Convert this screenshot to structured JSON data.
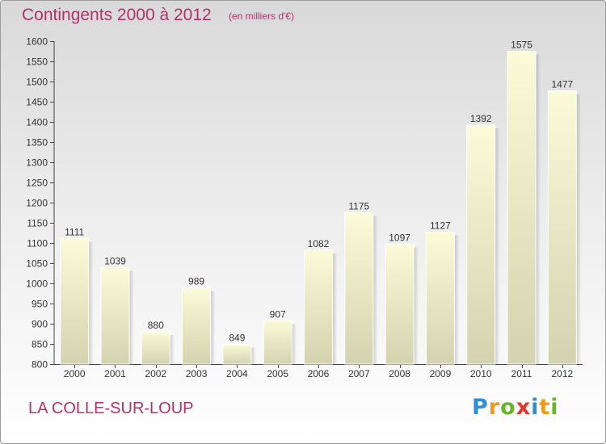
{
  "header": {
    "title": "Contingents 2000 à 2012",
    "unit": "(en milliers d'€)"
  },
  "footer": {
    "commune": "LA COLLE-SUR-LOUP",
    "brand_letters": [
      "P",
      "r",
      "o",
      "x",
      "i",
      "t",
      "i"
    ],
    "brand_colors": [
      "#2e8fd4",
      "#f09a1a",
      "#67b52c",
      "#e0382e",
      "#2e8fd4",
      "#f09a1a",
      "#67b52c"
    ]
  },
  "colors": {
    "bar_top": "#fbfbd9",
    "bar_bottom": "#d3d3b0",
    "bar_edge": "#ffffff",
    "axis": "#444444",
    "grid": "#bdbdbd",
    "accent": "#b0336a"
  },
  "chart_data": {
    "type": "bar",
    "title": "Contingents 2000 à 2012",
    "xlabel": "",
    "ylabel": "(en milliers d'€)",
    "categories": [
      "2000",
      "2001",
      "2002",
      "2003",
      "2004",
      "2005",
      "2006",
      "2007",
      "2008",
      "2009",
      "2010",
      "2011",
      "2012"
    ],
    "values": [
      1111,
      1039,
      880,
      989,
      849,
      907,
      1082,
      1175,
      1097,
      1127,
      1392,
      1575,
      1477
    ],
    "ylim": [
      800,
      1600
    ],
    "yticks": [
      800,
      850,
      900,
      950,
      1000,
      1050,
      1100,
      1150,
      1200,
      1250,
      1300,
      1350,
      1400,
      1450,
      1500,
      1550,
      1600
    ],
    "grid": false,
    "legend": "none"
  }
}
